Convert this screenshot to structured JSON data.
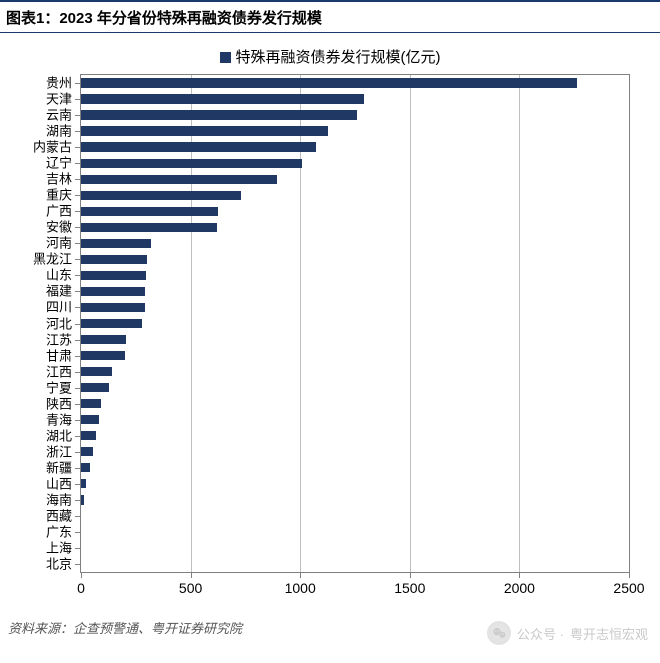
{
  "title": "图表1：2023 年分省份特殊再融资债券发行规模",
  "legend": {
    "label": "特殊再融资债券发行规模(亿元)",
    "swatch_color": "#203864"
  },
  "chart": {
    "type": "bar-horizontal",
    "bar_color": "#203864",
    "background_color": "#ffffff",
    "grid_color": "#bfbfbf",
    "axis_color": "#808080",
    "x": {
      "min": 0,
      "max": 2500,
      "step": 500,
      "ticks": [
        0,
        500,
        1000,
        1500,
        2000,
        2500
      ],
      "fontsize": 14
    },
    "ylabel_fontsize": 13,
    "series": [
      {
        "label": "贵州",
        "value": 2265
      },
      {
        "label": "天津",
        "value": 1290
      },
      {
        "label": "云南",
        "value": 1260
      },
      {
        "label": "湖南",
        "value": 1125
      },
      {
        "label": "内蒙古",
        "value": 1070
      },
      {
        "label": "辽宁",
        "value": 1010
      },
      {
        "label": "吉林",
        "value": 895
      },
      {
        "label": "重庆",
        "value": 730
      },
      {
        "label": "广西",
        "value": 625
      },
      {
        "label": "安徽",
        "value": 620
      },
      {
        "label": "河南",
        "value": 320
      },
      {
        "label": "黑龙江",
        "value": 300
      },
      {
        "label": "山东",
        "value": 295
      },
      {
        "label": "福建",
        "value": 290
      },
      {
        "label": "四川",
        "value": 290
      },
      {
        "label": "河北",
        "value": 280
      },
      {
        "label": "江苏",
        "value": 205
      },
      {
        "label": "甘肃",
        "value": 200
      },
      {
        "label": "江西",
        "value": 140
      },
      {
        "label": "宁夏",
        "value": 130
      },
      {
        "label": "陕西",
        "value": 90
      },
      {
        "label": "青海",
        "value": 80
      },
      {
        "label": "湖北",
        "value": 70
      },
      {
        "label": "浙江",
        "value": 55
      },
      {
        "label": "新疆",
        "value": 40
      },
      {
        "label": "山西",
        "value": 25
      },
      {
        "label": "海南",
        "value": 15
      },
      {
        "label": "西藏",
        "value": 0
      },
      {
        "label": "广东",
        "value": 0
      },
      {
        "label": "上海",
        "value": 0
      },
      {
        "label": "北京",
        "value": 0
      }
    ]
  },
  "source": "资料来源：企查预警通、粤开证券研究院",
  "watermark": {
    "prefix": "公众号 ·",
    "name": "粤开志恒宏观"
  }
}
